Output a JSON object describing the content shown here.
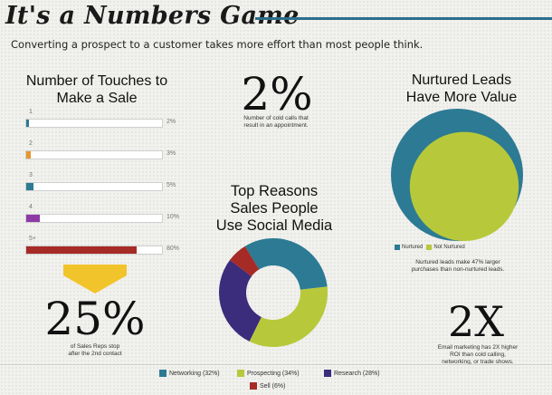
{
  "header": {
    "title": "It's a Numbers Game",
    "subtitle": "Converting a prospect to a customer takes more effort than most people think."
  },
  "touches": {
    "title_line1": "Number of Touches to",
    "title_line2": "Make a Sale"
  },
  "stats": {
    "cold_calls_value": "2%",
    "cold_calls_caption_line1": "Number of cold calls that",
    "cold_calls_caption_line2": "result in an appointment.",
    "stop_value": "25%",
    "stop_caption_line1": "of Sales Reps stop",
    "stop_caption_line2": "after the 2nd contact",
    "email_value": "2X",
    "email_caption_line1": "Email marketing has 2X higher",
    "email_caption_line2": "ROI than cold calling,",
    "email_caption_line3": "networking, or trade shows."
  },
  "nurtured": {
    "title_line1": "Nurtured Leads",
    "title_line2": "Have More Value",
    "caption_line1": "Nurtured leads make 47% larger",
    "caption_line2": "purchases than non-nurtured leads."
  },
  "reasons": {
    "title_line1": "Top Reasons",
    "title_line2": "Sales People",
    "title_line3": "Use Social Media"
  },
  "colors": {
    "teal": "#2c7a93",
    "lime": "#b7c93a",
    "purple": "#3b2c7c",
    "red": "#a62a25",
    "orange": "#e8962e",
    "violet": "#8e3aa6",
    "yellow": "#f2c42b"
  },
  "chart_data": [
    {
      "type": "bar",
      "orientation": "horizontal",
      "categories": [
        "1",
        "2",
        "3",
        "4",
        "5+"
      ],
      "values": [
        2,
        3,
        5,
        10,
        80
      ],
      "value_labels": [
        "2%",
        "3%",
        "5%",
        "10%",
        "80%"
      ],
      "colors": [
        "#2c7a93",
        "#e8962e",
        "#2c7a93",
        "#8e3aa6",
        "#a62a25"
      ],
      "xlim": [
        0,
        100
      ]
    },
    {
      "type": "pie",
      "style": "donut",
      "labels": [
        "Networking (32%)",
        "Prospecting (34%)",
        "Research (28%)",
        "Sell (6%)"
      ],
      "values": [
        32,
        34,
        28,
        6
      ],
      "colors": [
        "#2c7a93",
        "#b7c93a",
        "#3b2c7c",
        "#a62a25"
      ],
      "legend": "bottom"
    },
    {
      "type": "pie",
      "style": "nested-circles",
      "labels": [
        "Nurtured",
        "Not Nurtured"
      ],
      "values": [
        147,
        100
      ],
      "colors": [
        "#2c7a93",
        "#b7c93a"
      ],
      "legend": "bottom"
    }
  ]
}
